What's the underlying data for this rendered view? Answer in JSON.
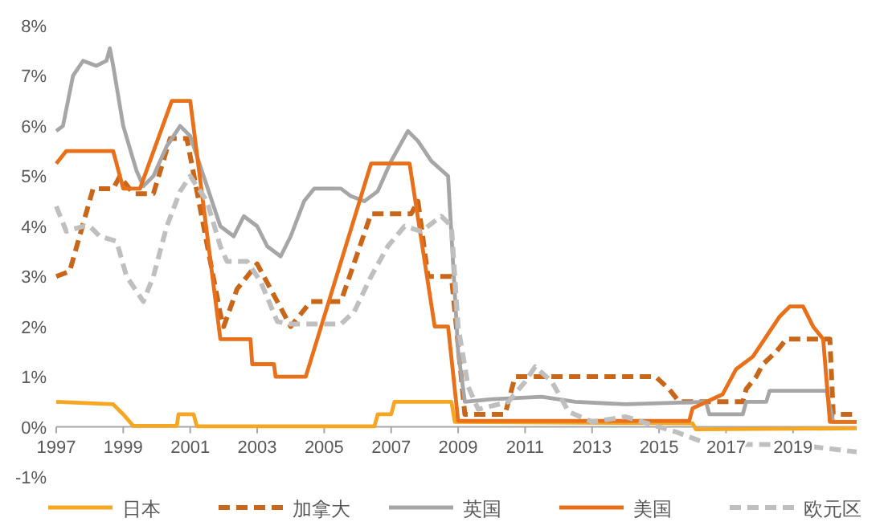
{
  "chart_data": {
    "type": "line",
    "xlim": [
      1997,
      2020.9
    ],
    "xticks": [
      1997,
      1999,
      2001,
      2003,
      2005,
      2007,
      2009,
      2011,
      2013,
      2015,
      2017,
      2019
    ],
    "ylim": [
      -1,
      8
    ],
    "yticks": [
      {
        "value": -1,
        "label": "-1%"
      },
      {
        "value": 0,
        "label": "0%"
      },
      {
        "value": 1,
        "label": "1%"
      },
      {
        "value": 2,
        "label": "2%"
      },
      {
        "value": 3,
        "label": "3%"
      },
      {
        "value": 4,
        "label": "4%"
      },
      {
        "value": 5,
        "label": "5%"
      },
      {
        "value": 6,
        "label": "6%"
      },
      {
        "value": 7,
        "label": "7%"
      },
      {
        "value": 8,
        "label": "8%"
      }
    ],
    "grid": false,
    "legend": "bottom",
    "series": [
      {
        "name": "日本",
        "color": "#f5a623",
        "line_style": "solid",
        "x": [
          1997,
          1998,
          1998.7,
          1999,
          1999.3,
          2000.6,
          2000.65,
          2001.1,
          2001.2,
          2006.5,
          2006.6,
          2007.0,
          2007.1,
          2008.8,
          2008.9,
          2016.0,
          2016.1,
          2020.9
        ],
        "values": [
          0.5,
          0.47,
          0.45,
          0.25,
          0.02,
          0.02,
          0.25,
          0.25,
          0.01,
          0.01,
          0.25,
          0.25,
          0.5,
          0.5,
          0.1,
          0.07,
          -0.05,
          -0.03
        ]
      },
      {
        "name": "加拿大",
        "color": "#c8661a",
        "line_style": "dashed",
        "x": [
          1997,
          1997.4,
          1998.1,
          1998.7,
          1998.9,
          1999.3,
          1999.9,
          2000.4,
          2000.9,
          2001.9,
          2002.0,
          2002.4,
          2003.0,
          2004.0,
          2004.6,
          2005.5,
          2006.4,
          2007.6,
          2007.8,
          2008.1,
          2008.8,
          2009.2,
          2010.4,
          2010.7,
          2014.9,
          2015.3,
          2015.6,
          2017.5,
          2017.6,
          2017.9,
          2018.1,
          2018.5,
          2018.8,
          2020.1,
          2020.2,
          2020.9
        ],
        "values": [
          3.0,
          3.1,
          4.75,
          4.75,
          5.0,
          4.65,
          4.65,
          5.75,
          5.75,
          2.25,
          2.0,
          2.75,
          3.25,
          2.0,
          2.5,
          2.5,
          4.25,
          4.25,
          4.5,
          3.0,
          3.0,
          0.25,
          0.25,
          1.0,
          1.0,
          0.75,
          0.5,
          0.5,
          0.75,
          1.0,
          1.25,
          1.5,
          1.75,
          1.75,
          0.25,
          0.25
        ]
      },
      {
        "name": "英国",
        "color": "#a6a6a6",
        "line_style": "solid",
        "x": [
          1997,
          1997.2,
          1997.5,
          1997.8,
          1998.2,
          1998.5,
          1998.6,
          1998.7,
          1999.0,
          1999.4,
          1999.6,
          1999.9,
          2000.3,
          2000.7,
          2001.0,
          2001.4,
          2001.9,
          2002.3,
          2002.6,
          2003.0,
          2003.3,
          2003.7,
          2004.0,
          2004.4,
          2004.7,
          2005.5,
          2005.8,
          2006.2,
          2006.6,
          2007.0,
          2007.5,
          2007.8,
          2008.2,
          2008.7,
          2009.0,
          2009.2,
          2010.0,
          2011.5,
          2012.5,
          2014.0,
          2016.4,
          2016.5,
          2017.5,
          2017.6,
          2018.2,
          2018.3,
          2020.0,
          2020.2,
          2020.9
        ],
        "values": [
          5.9,
          6.0,
          7.0,
          7.3,
          7.2,
          7.3,
          7.55,
          7.2,
          6.0,
          5.1,
          4.8,
          5.0,
          5.6,
          6.0,
          5.8,
          5.0,
          4.0,
          3.8,
          4.2,
          4.0,
          3.6,
          3.4,
          3.8,
          4.5,
          4.75,
          4.75,
          4.6,
          4.5,
          4.7,
          5.3,
          5.9,
          5.7,
          5.3,
          5.0,
          1.5,
          0.5,
          0.55,
          0.6,
          0.5,
          0.45,
          0.5,
          0.25,
          0.25,
          0.5,
          0.5,
          0.72,
          0.72,
          0.1,
          0.1
        ]
      },
      {
        "name": "美国",
        "color": "#e8701a",
        "line_style": "solid",
        "x": [
          1997,
          1997.3,
          1998.7,
          1999.0,
          1999.5,
          2000.45,
          2001.0,
          2001.9,
          2002.8,
          2002.85,
          2003.5,
          2003.55,
          2004.45,
          2006.4,
          2007.55,
          2008.3,
          2008.7,
          2009.0,
          2015.9,
          2016.0,
          2016.9,
          2017.3,
          2017.8,
          2018.3,
          2018.6,
          2018.9,
          2019.3,
          2019.6,
          2019.9,
          2020.1,
          2020.9
        ],
        "values": [
          5.25,
          5.5,
          5.5,
          4.75,
          4.75,
          6.5,
          6.5,
          1.75,
          1.75,
          1.25,
          1.25,
          1.0,
          1.0,
          5.25,
          5.25,
          2.0,
          2.0,
          0.12,
          0.12,
          0.37,
          0.65,
          1.15,
          1.4,
          1.9,
          2.2,
          2.4,
          2.4,
          2.0,
          1.75,
          0.1,
          0.1
        ]
      },
      {
        "name": "欧元区",
        "color": "#bfbfbf",
        "line_style": "dashed",
        "x": [
          1997,
          1997.3,
          1997.8,
          1998.0,
          1998.3,
          1998.8,
          1999.1,
          1999.6,
          1999.9,
          2000.3,
          2000.7,
          2001.0,
          2001.5,
          2001.9,
          2002.1,
          2002.7,
          2003.1,
          2003.6,
          2004.0,
          2005.5,
          2005.9,
          2006.4,
          2006.9,
          2007.4,
          2007.9,
          2008.5,
          2008.8,
          2009.0,
          2009.3,
          2009.6,
          2010.5,
          2011.0,
          2011.3,
          2011.8,
          2012.3,
          2013.0,
          2014.0,
          2014.5,
          2015.0,
          2015.5,
          2016.3,
          2017.0,
          2019.0,
          2020.9
        ],
        "values": [
          4.4,
          3.9,
          4.0,
          4.0,
          3.8,
          3.7,
          3.0,
          2.5,
          3.0,
          4.0,
          4.7,
          5.0,
          4.5,
          3.6,
          3.3,
          3.3,
          2.9,
          2.1,
          2.05,
          2.05,
          2.3,
          3.0,
          3.6,
          4.0,
          3.9,
          4.2,
          4.0,
          2.0,
          0.8,
          0.35,
          0.5,
          0.9,
          1.2,
          0.9,
          0.3,
          0.1,
          0.2,
          0.1,
          0.0,
          -0.1,
          -0.3,
          -0.35,
          -0.35,
          -0.5
        ]
      }
    ]
  }
}
